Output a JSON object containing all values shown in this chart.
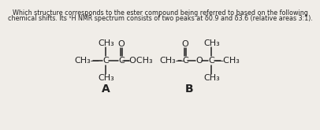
{
  "title_line1": "Which structure corresponds to the ester compound being referred to based on the following",
  "title_line2": "chemical shifts. Its ¹H NMR spectrum consists of two peaks at δ0.9 and δ3.6 (relative areas 3:1).",
  "bg_color": "#f0ede8",
  "text_color": "#222222",
  "label_A": "A",
  "label_B": "B",
  "title_fontsize": 5.8,
  "struct_fontsize": 8.0,
  "label_fontsize": 10,
  "lw": 1.1
}
